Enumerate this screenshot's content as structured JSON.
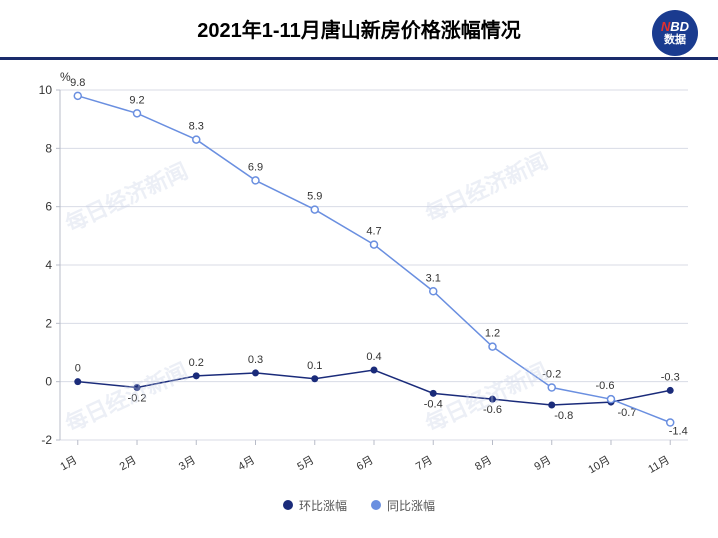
{
  "title": "2021年1-11月唐山新房价格涨幅情况",
  "logo": {
    "nbd": "NBD",
    "cn": "数据"
  },
  "watermark_text": "每日经济新闻",
  "chart": {
    "type": "line",
    "y_unit": "%",
    "categories": [
      "1月",
      "2月",
      "3月",
      "4月",
      "5月",
      "6月",
      "7月",
      "8月",
      "9月",
      "10月",
      "11月"
    ],
    "ylim": [
      -2,
      10
    ],
    "ytick_step": 2,
    "grid_color": "#d8dbe6",
    "axis_color": "#b8bcc8",
    "background_color": "#ffffff",
    "label_fontsize": 11,
    "tick_fontsize": 12,
    "series": [
      {
        "name": "环比涨幅",
        "color": "#1a2b7a",
        "marker": "circle",
        "line_width": 1.5,
        "values": [
          0,
          -0.2,
          0.2,
          0.3,
          0.1,
          0.4,
          -0.4,
          -0.6,
          -0.8,
          -0.7,
          -0.3
        ],
        "label_offsets": [
          [
            0,
            -10
          ],
          [
            0,
            14
          ],
          [
            0,
            -10
          ],
          [
            0,
            -10
          ],
          [
            0,
            -10
          ],
          [
            0,
            -10
          ],
          [
            0,
            14
          ],
          [
            0,
            14
          ],
          [
            12,
            14
          ],
          [
            16,
            14
          ],
          [
            0,
            -10
          ]
        ]
      },
      {
        "name": "同比涨幅",
        "color": "#6a8fe0",
        "marker": "circle-open",
        "line_width": 1.5,
        "values": [
          9.8,
          9.2,
          8.3,
          6.9,
          5.9,
          4.7,
          3.1,
          1.2,
          -0.2,
          -0.6,
          -1.4
        ],
        "label_offsets": [
          [
            0,
            -10
          ],
          [
            0,
            -10
          ],
          [
            0,
            -10
          ],
          [
            0,
            -10
          ],
          [
            0,
            -10
          ],
          [
            0,
            -10
          ],
          [
            0,
            -10
          ],
          [
            0,
            -10
          ],
          [
            0,
            -10
          ],
          [
            -6,
            -10
          ],
          [
            8,
            12
          ]
        ]
      }
    ]
  },
  "legend": {
    "items": [
      {
        "label": "环比涨幅",
        "color": "#1a2b7a"
      },
      {
        "label": "同比涨幅",
        "color": "#6a8fe0"
      }
    ]
  }
}
